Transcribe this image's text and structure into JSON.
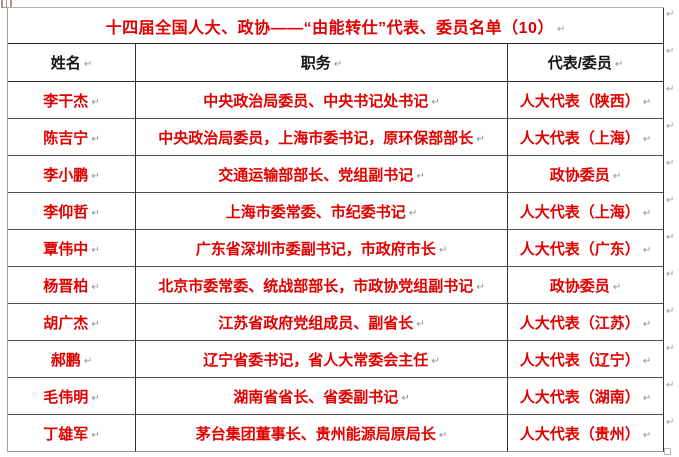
{
  "document": {
    "title": "十四届全国人大、政协——“由能转仕”代表、委员名单（10）"
  },
  "table": {
    "headers": {
      "name": "姓名",
      "position": "职务",
      "category": "代表/委员"
    },
    "rows": [
      {
        "name": "李干杰",
        "position": "中央政治局委员、中央书记处书记",
        "category": "人大代表（陕西）"
      },
      {
        "name": "陈吉宁",
        "position": "中央政治局委员，上海市委书记，原环保部部长",
        "category": "人大代表（上海）"
      },
      {
        "name": "李小鹏",
        "position": "交通运输部部长、党组副书记",
        "category": "政协委员"
      },
      {
        "name": "李仰哲",
        "position": "上海市委常委、市纪委书记",
        "category": "人大代表（上海）"
      },
      {
        "name": "覃伟中",
        "position": "广东省深圳市委副书记，市政府市长",
        "category": "人大代表（广东）"
      },
      {
        "name": "杨晋柏",
        "position": "北京市委常委、统战部部长，市政协党组副书记",
        "category": "政协委员"
      },
      {
        "name": "胡广杰",
        "position": "江苏省政府党组成员、副省长",
        "category": "人大代表（江苏）"
      },
      {
        "name": "郝鹏",
        "position": "辽宁省委书记，省人大常委会主任",
        "category": "人大代表（辽宁）"
      },
      {
        "name": "毛伟明",
        "position": "湖南省省长、省委副书记",
        "category": "人大代表（湖南）"
      },
      {
        "name": "丁雄军",
        "position": "茅台集团董事长、贵州能源局原局长",
        "category": "人大代表（贵州）"
      }
    ]
  },
  "formatting_marks": {
    "cell_end_mark": "↵",
    "row_end_mark": "↵"
  },
  "colors": {
    "accent_red": "#e00000",
    "header_black": "#141414",
    "mark_gray": "#8f8f8f",
    "border_dark": "#2f2f2f",
    "border_light": "#a6a6a6"
  }
}
